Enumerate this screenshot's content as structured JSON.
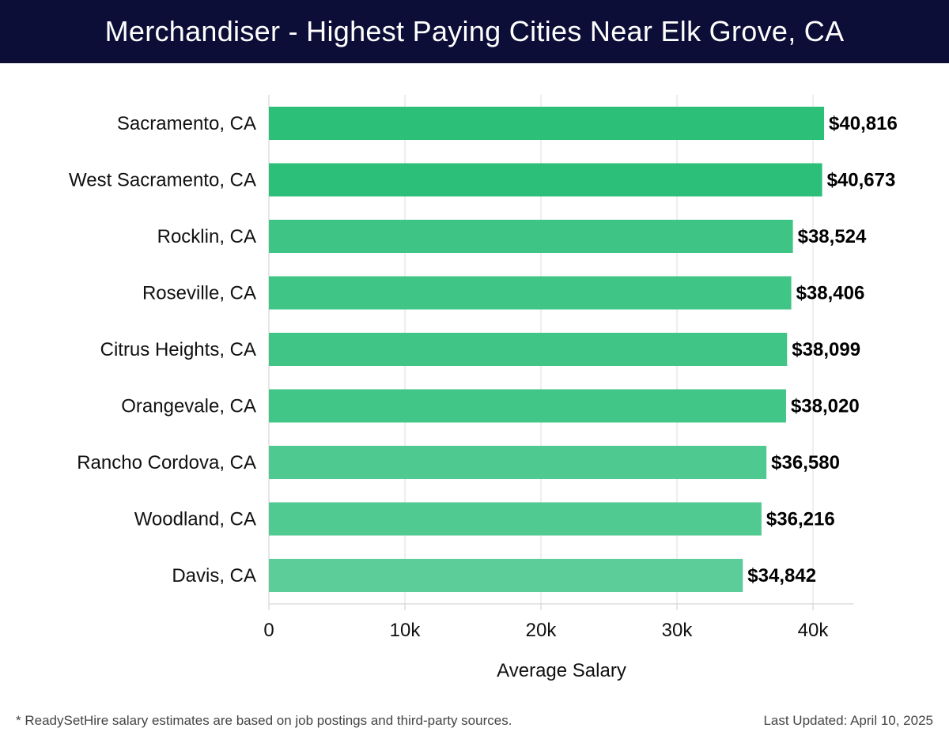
{
  "header": {
    "title": "Merchandiser - Highest Paying Cities Near Elk Grove, CA"
  },
  "footer": {
    "note": "* ReadySetHire salary estimates are based on job postings and third-party sources.",
    "updated": "Last Updated: April 10, 2025"
  },
  "chart_data": {
    "type": "bar",
    "orientation": "horizontal",
    "title": "Merchandiser - Highest Paying Cities Near Elk Grove, CA",
    "xlabel": "Average Salary",
    "ylabel": "",
    "categories": [
      "Sacramento, CA",
      "West Sacramento, CA",
      "Rocklin, CA",
      "Roseville, CA",
      "Citrus Heights, CA",
      "Orangevale, CA",
      "Rancho Cordova, CA",
      "Woodland, CA",
      "Davis, CA"
    ],
    "values": [
      40816,
      40673,
      38524,
      38406,
      38099,
      38020,
      36580,
      36216,
      34842
    ],
    "value_labels": [
      "$40,816",
      "$40,673",
      "$38,524",
      "$38,406",
      "$38,099",
      "$38,020",
      "$36,580",
      "$36,216",
      "$34,842"
    ],
    "xlim": [
      0,
      43000
    ],
    "xticks": [
      0,
      10000,
      20000,
      30000,
      40000
    ],
    "xtick_labels": [
      "0",
      "10k",
      "20k",
      "30k",
      "40k"
    ],
    "grid": true,
    "colors": {
      "bar_max": "#2bbf78",
      "bar_min": "#5ccd98",
      "grid": "#dddddd",
      "axis": "#cccccc",
      "header_bg": "#0d0e38"
    }
  }
}
